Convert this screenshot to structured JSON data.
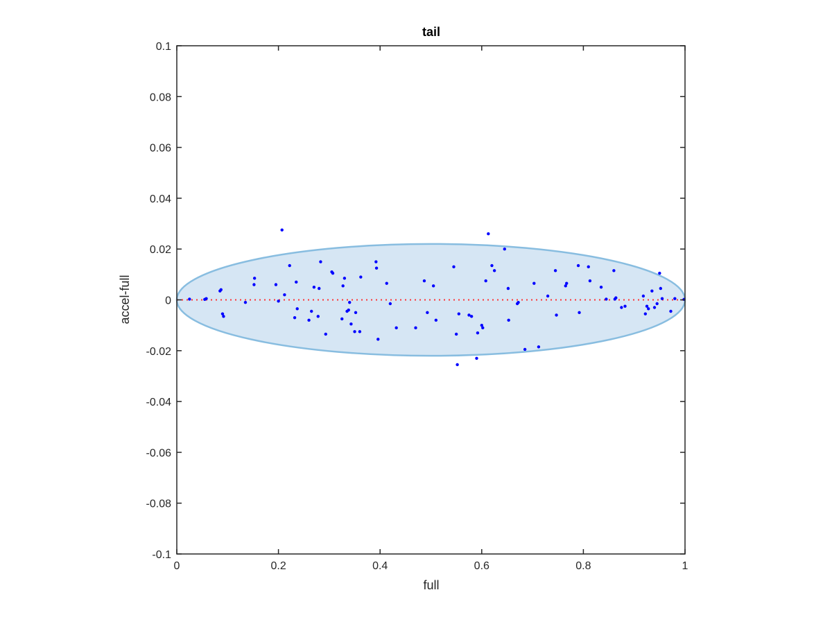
{
  "chart_data": {
    "type": "scatter",
    "title": "tail",
    "xlabel": "full",
    "ylabel": "accel-full",
    "xlim": [
      0,
      1
    ],
    "ylim": [
      -0.1,
      0.1
    ],
    "x_ticks": [
      0,
      0.2,
      0.4,
      0.6,
      0.8,
      1
    ],
    "x_tick_labels": [
      "0",
      "0.2",
      "0.4",
      "0.6",
      "0.8",
      "1"
    ],
    "y_ticks": [
      -0.1,
      -0.08,
      -0.06,
      -0.04,
      -0.02,
      0,
      0.02,
      0.04,
      0.06,
      0.08,
      0.1
    ],
    "y_tick_labels": [
      "-0.1",
      "-0.08",
      "-0.06",
      "-0.04",
      "-0.02",
      "0",
      "0.02",
      "0.04",
      "0.06",
      "0.08",
      "0.1"
    ],
    "grid": false,
    "point_color": "#0000ff",
    "reference_line": {
      "y": 0,
      "style": "dotted",
      "color": "#ff3333"
    },
    "ellipse": {
      "center": [
        0.5,
        0
      ],
      "x_radius": 0.5,
      "y_radius": 0.022,
      "fill": "#d6e6f4",
      "stroke": "#88bde0"
    },
    "points": [
      [
        0.025,
        0.0003
      ],
      [
        0.055,
        0.0002
      ],
      [
        0.058,
        0.0005
      ],
      [
        0.085,
        0.0035
      ],
      [
        0.087,
        0.004
      ],
      [
        0.09,
        -0.0055
      ],
      [
        0.092,
        -0.0065
      ],
      [
        0.135,
        -0.001
      ],
      [
        0.152,
        0.006
      ],
      [
        0.153,
        0.0085
      ],
      [
        0.195,
        0.006
      ],
      [
        0.2,
        -0.0005
      ],
      [
        0.207,
        0.0275
      ],
      [
        0.212,
        0.002
      ],
      [
        0.222,
        0.0135
      ],
      [
        0.232,
        -0.007
      ],
      [
        0.235,
        0.007
      ],
      [
        0.237,
        -0.0035
      ],
      [
        0.26,
        -0.008
      ],
      [
        0.265,
        -0.0045
      ],
      [
        0.27,
        0.005
      ],
      [
        0.278,
        -0.0065
      ],
      [
        0.28,
        0.0045
      ],
      [
        0.283,
        0.015
      ],
      [
        0.293,
        -0.0135
      ],
      [
        0.305,
        0.011
      ],
      [
        0.307,
        0.0105
      ],
      [
        0.325,
        -0.0075
      ],
      [
        0.327,
        0.0055
      ],
      [
        0.33,
        0.0085
      ],
      [
        0.335,
        -0.0045
      ],
      [
        0.338,
        -0.004
      ],
      [
        0.34,
        -0.001
      ],
      [
        0.343,
        -0.0095
      ],
      [
        0.35,
        -0.0125
      ],
      [
        0.352,
        -0.005
      ],
      [
        0.36,
        -0.0125
      ],
      [
        0.362,
        0.009
      ],
      [
        0.392,
        0.015
      ],
      [
        0.393,
        0.0125
      ],
      [
        0.396,
        -0.0155
      ],
      [
        0.413,
        0.0065
      ],
      [
        0.42,
        -0.0015
      ],
      [
        0.432,
        -0.011
      ],
      [
        0.47,
        -0.011
      ],
      [
        0.487,
        0.0075
      ],
      [
        0.493,
        -0.005
      ],
      [
        0.505,
        0.0055
      ],
      [
        0.51,
        -0.008
      ],
      [
        0.545,
        0.013
      ],
      [
        0.55,
        -0.0135
      ],
      [
        0.552,
        -0.0255
      ],
      [
        0.555,
        -0.0055
      ],
      [
        0.575,
        -0.006
      ],
      [
        0.58,
        -0.0065
      ],
      [
        0.59,
        -0.023
      ],
      [
        0.592,
        -0.013
      ],
      [
        0.6,
        -0.01
      ],
      [
        0.602,
        -0.011
      ],
      [
        0.608,
        0.0075
      ],
      [
        0.613,
        0.026
      ],
      [
        0.62,
        0.0135
      ],
      [
        0.625,
        0.0115
      ],
      [
        0.645,
        0.02
      ],
      [
        0.652,
        0.0045
      ],
      [
        0.653,
        -0.008
      ],
      [
        0.67,
        -0.0015
      ],
      [
        0.672,
        -0.001
      ],
      [
        0.685,
        -0.0195
      ],
      [
        0.703,
        0.0065
      ],
      [
        0.712,
        -0.0185
      ],
      [
        0.73,
        0.0015
      ],
      [
        0.745,
        0.0115
      ],
      [
        0.747,
        -0.006
      ],
      [
        0.765,
        0.0055
      ],
      [
        0.767,
        0.0065
      ],
      [
        0.79,
        0.0135
      ],
      [
        0.792,
        -0.005
      ],
      [
        0.81,
        0.013
      ],
      [
        0.813,
        0.0075
      ],
      [
        0.835,
        0.005
      ],
      [
        0.845,
        0.0003
      ],
      [
        0.86,
        0.0115
      ],
      [
        0.862,
        0.0003
      ],
      [
        0.864,
        0.0008
      ],
      [
        0.875,
        -0.003
      ],
      [
        0.882,
        -0.0025
      ],
      [
        0.918,
        0.0015
      ],
      [
        0.922,
        -0.0055
      ],
      [
        0.925,
        -0.0025
      ],
      [
        0.928,
        -0.0035
      ],
      [
        0.935,
        0.0035
      ],
      [
        0.94,
        -0.003
      ],
      [
        0.945,
        -0.0015
      ],
      [
        0.95,
        0.0105
      ],
      [
        0.952,
        0.0045
      ],
      [
        0.955,
        0.0005
      ],
      [
        0.972,
        -0.0045
      ],
      [
        0.98,
        0.0005
      ],
      [
        0.998,
        0.0002
      ]
    ]
  }
}
